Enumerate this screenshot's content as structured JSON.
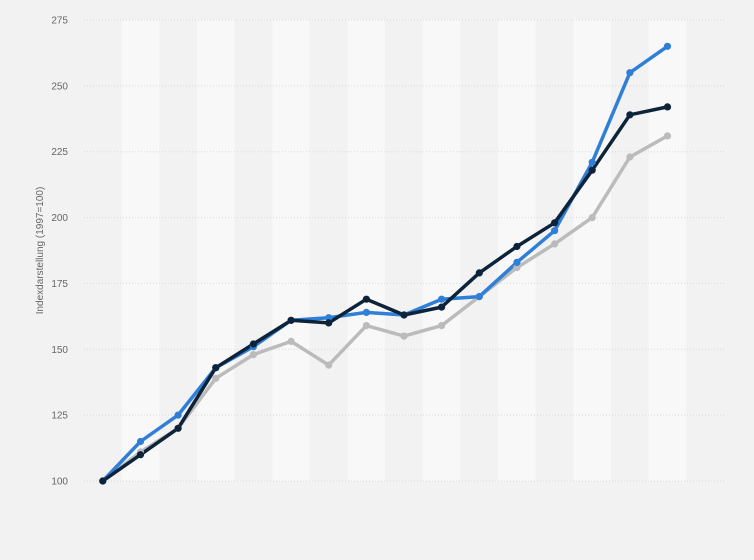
{
  "chart_data": {
    "type": "line",
    "title": "",
    "xlabel": "",
    "ylabel": "Indexdarstellung (1997=100)",
    "ylim": [
      100,
      275
    ],
    "yticks": [
      100,
      125,
      150,
      175,
      200,
      225,
      250,
      275
    ],
    "grid": true,
    "x": [
      0,
      1,
      2,
      3,
      4,
      5,
      6,
      7,
      8,
      9,
      10,
      11,
      12,
      13,
      14,
      15,
      16
    ],
    "series": [
      {
        "color": "#2f7ed8",
        "values": [
          100,
          115,
          125,
          143,
          151,
          161,
          162,
          164,
          163,
          169,
          170,
          183,
          195,
          221,
          255,
          265,
          null
        ]
      },
      {
        "color": "#0d233a",
        "values": [
          100,
          110,
          120,
          143,
          152,
          161,
          160,
          169,
          163,
          166,
          179,
          189,
          198,
          218,
          239,
          242,
          null
        ]
      },
      {
        "color": "#bbbbbb",
        "values": [
          100,
          111,
          120,
          139,
          148,
          153,
          144,
          159,
          155,
          159,
          170,
          181,
          190,
          200,
          223,
          231,
          null
        ]
      }
    ],
    "colors": {
      "background": "#f2f2f2",
      "band_light": "#f8f8f8",
      "band_dark": "#f2f2f2",
      "gridline": "#d9d9d9",
      "text": "#666666"
    }
  }
}
